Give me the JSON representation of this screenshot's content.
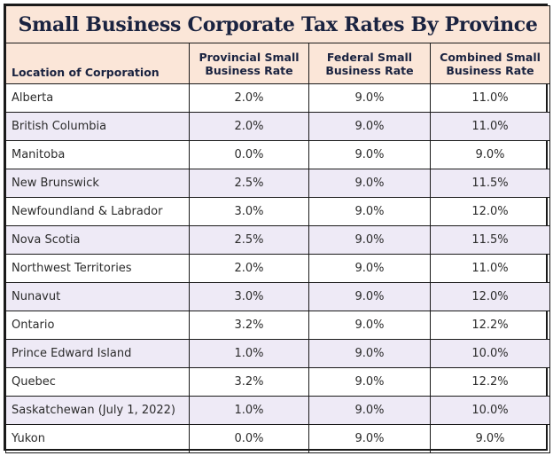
{
  "title": "Small Business Corporate Tax Rates By Province",
  "headers": {
    "location": "Location of Corporation",
    "provincial": "Provincial Small Business Rate",
    "federal": "Federal Small Business Rate",
    "combined": "Combined Small Business Rate"
  },
  "rows": [
    {
      "location": "Alberta",
      "provincial": "2.0%",
      "federal": "9.0%",
      "combined": "11.0%"
    },
    {
      "location": "British Columbia",
      "provincial": "2.0%",
      "federal": "9.0%",
      "combined": "11.0%"
    },
    {
      "location": "Manitoba",
      "provincial": "0.0%",
      "federal": "9.0%",
      "combined": "9.0%"
    },
    {
      "location": "New Brunswick",
      "provincial": "2.5%",
      "federal": "9.0%",
      "combined": "11.5%"
    },
    {
      "location": "Newfoundland & Labrador",
      "provincial": "3.0%",
      "federal": "9.0%",
      "combined": "12.0%"
    },
    {
      "location": "Nova Scotia",
      "provincial": "2.5%",
      "federal": "9.0%",
      "combined": "11.5%"
    },
    {
      "location": "Northwest Territories",
      "provincial": "2.0%",
      "federal": "9.0%",
      "combined": "11.0%"
    },
    {
      "location": "Nunavut",
      "provincial": "3.0%",
      "federal": "9.0%",
      "combined": "12.0%"
    },
    {
      "location": "Ontario",
      "provincial": "3.2%",
      "federal": "9.0%",
      "combined": "12.2%"
    },
    {
      "location": "Prince Edward Island",
      "provincial": "1.0%",
      "federal": "9.0%",
      "combined": "10.0%"
    },
    {
      "location": "Quebec",
      "provincial": "3.2%",
      "federal": "9.0%",
      "combined": "12.2%"
    },
    {
      "location": "Saskatchewan (July 1, 2022)",
      "provincial": "1.0%",
      "federal": "9.0%",
      "combined": "10.0%"
    },
    {
      "location": "Yukon",
      "provincial": "0.0%",
      "federal": "9.0%",
      "combined": "9.0%"
    }
  ],
  "colors": {
    "header_bg": "#fbe6d8",
    "alt_row_bg": "#eeeaf6",
    "title_text": "#1a2340",
    "border": "#1a1a1a"
  }
}
